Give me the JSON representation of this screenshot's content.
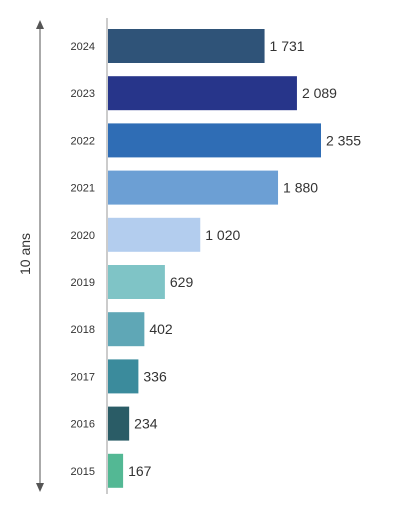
{
  "chart_data": {
    "type": "bar",
    "orientation": "horizontal",
    "categories": [
      "2024",
      "2023",
      "2022",
      "2021",
      "2020",
      "2019",
      "2018",
      "2017",
      "2016",
      "2015"
    ],
    "values": [
      1731,
      2089,
      2355,
      1880,
      1020,
      629,
      402,
      336,
      234,
      167
    ],
    "value_labels": [
      "1 731",
      "2 089",
      "2 355",
      "1 880",
      "1 020",
      "629",
      "402",
      "336",
      "234",
      "167"
    ],
    "bar_colors": [
      "#2f5378",
      "#27358a",
      "#2f6db5",
      "#6c9fd4",
      "#b3cdee",
      "#7fc4c6",
      "#5fa7b6",
      "#3b8b9c",
      "#2a5c66",
      "#53b894"
    ],
    "title": "",
    "xlabel": "",
    "ylabel": "",
    "xlim": [
      0,
      2355
    ],
    "grid": false,
    "legend": "none",
    "annotation": {
      "label": "10 ans",
      "type": "double-arrow",
      "side": "left"
    }
  }
}
